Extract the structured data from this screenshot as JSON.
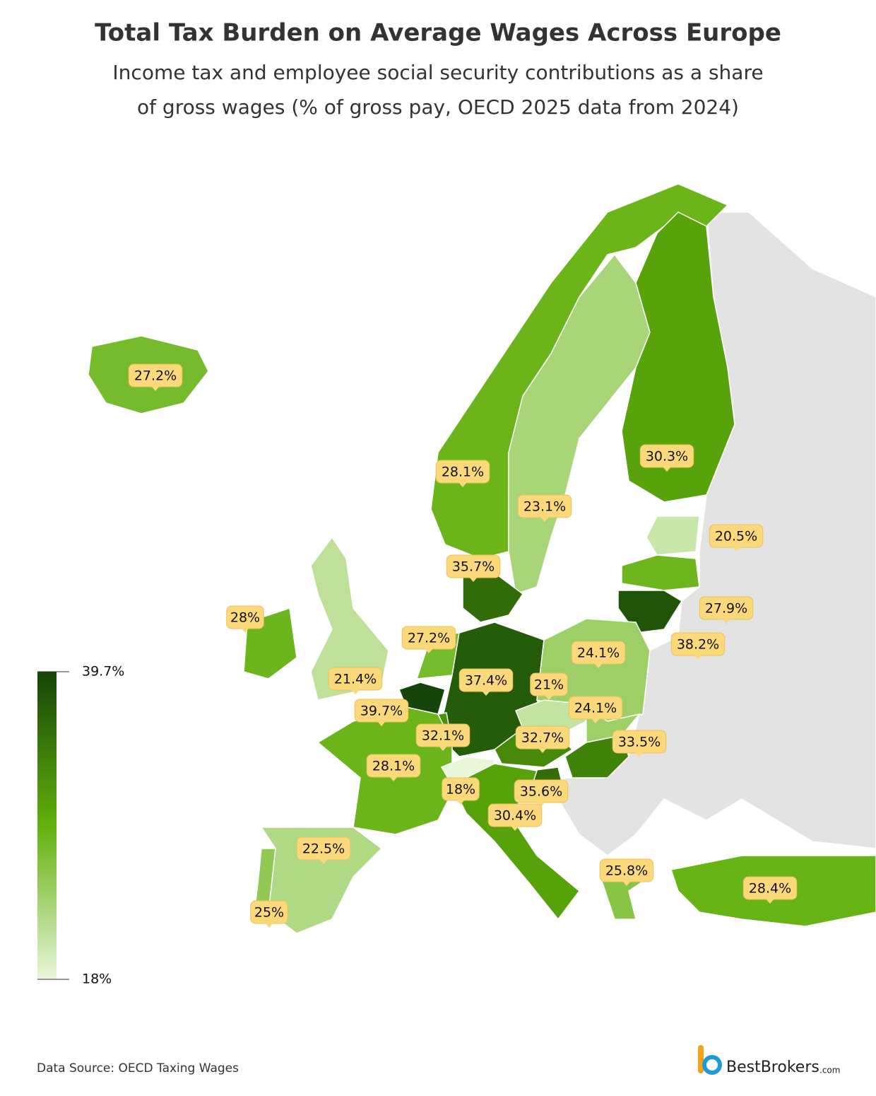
{
  "chart_data": {
    "type": "choropleth",
    "title": "Total Tax Burden on Average Wages Across Europe",
    "subtitle": [
      "Income tax and employee social security contributions as a share",
      "of gross wages (% of gross pay, OECD 2025 data from 2024)"
    ],
    "values": [
      27.2,
      28.1,
      23.1,
      30.3,
      20.5,
      35.7,
      27.9,
      38.2,
      28,
      21.4,
      27.2,
      37.4,
      24.1,
      21,
      39.7,
      24.1,
      32.1,
      32.7,
      33.5,
      28.1,
      18,
      35.6,
      30.4,
      22.5,
      25.8,
      28.4,
      25
    ],
    "value_labels": [
      "27.2%",
      "28.1%",
      "23.1%",
      "30.3%",
      "20.5%",
      "35.7%",
      "27.9%",
      "38.2%",
      "28%",
      "21.4%",
      "27.2%",
      "37.4%",
      "24.1%",
      "21%",
      "39.7%",
      "24.1%",
      "32.1%",
      "32.7%",
      "33.5%",
      "28.1%",
      "18%",
      "35.6%",
      "30.4%",
      "22.5%",
      "25.8%",
      "28.4%",
      "25%"
    ],
    "color_stops": [
      "#e8f6da",
      "#62b00c",
      "#154508"
    ],
    "colorbar_lim": [
      18,
      39.7
    ],
    "colorbar_ticks": [
      {
        "value": 39.7,
        "label": "39.7%"
      },
      {
        "value": 18,
        "label": "18%"
      }
    ],
    "source": "Data Source: OECD Taxing Wages",
    "brand": "BestBrokers",
    "brand_suffix": ".com"
  }
}
